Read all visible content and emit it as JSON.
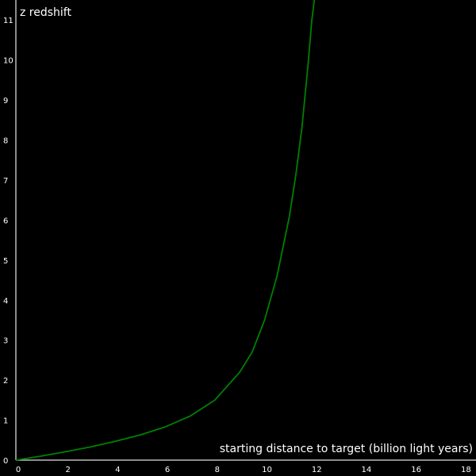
{
  "chart_data": {
    "type": "line",
    "title": "",
    "xlabel": "starting distance to target (billion light years)",
    "ylabel": "z redshift",
    "xlim": [
      0,
      18.5
    ],
    "ylim": [
      0,
      11.5
    ],
    "x_ticks": [
      0,
      2,
      4,
      6,
      8,
      10,
      12,
      14,
      16,
      18
    ],
    "y_ticks": [
      0,
      1,
      2,
      3,
      4,
      5,
      6,
      7,
      8,
      9,
      10,
      11
    ],
    "grid": false,
    "legend": "none",
    "series": [
      {
        "color": "#008000",
        "x": [
          0,
          1,
          2,
          3,
          4,
          5,
          6,
          7,
          8,
          9,
          9.5,
          10,
          10.5,
          11,
          11.25,
          11.5,
          11.75,
          11.9,
          12.0
        ],
        "y": [
          0,
          0.1,
          0.21,
          0.33,
          0.47,
          0.63,
          0.83,
          1.1,
          1.5,
          2.2,
          2.7,
          3.5,
          4.6,
          6.1,
          7.1,
          8.3,
          9.9,
          11.0,
          11.6
        ]
      }
    ]
  },
  "colors": {
    "background": "#000000",
    "axis": "#bbbbbb",
    "text": "#ffffff"
  }
}
